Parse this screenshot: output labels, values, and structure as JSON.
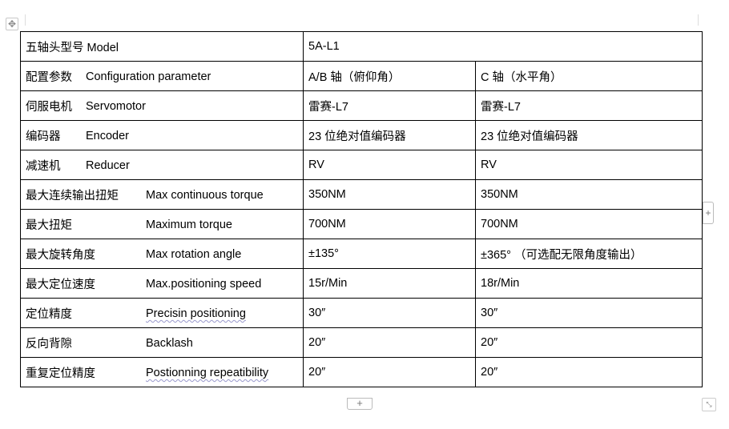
{
  "controls": {
    "move_icon": "move-arrows-icon",
    "add_row": "+",
    "add_column": "+",
    "resize_icon": "resize-icon"
  },
  "table": {
    "header": {
      "label_cn": "五轴头型号",
      "label_en": "Model",
      "value": "5A-L1"
    },
    "rows": [
      {
        "cn": "配置参数",
        "en": "Configuration parameter",
        "ab": "A/B 轴（俯仰角）",
        "c": "C 轴（水平角）"
      },
      {
        "cn": "伺服电机",
        "en": "Servomotor",
        "ab": "雷赛-L7",
        "c": "雷赛-L7"
      },
      {
        "cn": "编码器",
        "en": "Encoder",
        "ab": "23 位绝对值编码器",
        "c": "23 位绝对值编码器"
      },
      {
        "cn": "减速机",
        "en": "Reducer",
        "ab": "RV",
        "c": "RV"
      },
      {
        "cn": "最大连续输出扭矩",
        "en": "Max continuous torque",
        "ab": "350NM",
        "c": "350NM"
      },
      {
        "cn": "最大扭矩",
        "en": "Maximum torque",
        "ab": "700NM",
        "c": "700NM"
      },
      {
        "cn": "最大旋转角度",
        "en": "Max rotation angle",
        "ab": "±135°",
        "c": "±365° （可选配无限角度输出）"
      },
      {
        "cn": "最大定位速度",
        "en": "Max.positioning speed",
        "ab": "15r/Min",
        "c": "18r/Min"
      },
      {
        "cn": "定位精度",
        "en": "Precisin positioning",
        "ab": "30″",
        "c": "30″"
      },
      {
        "cn": "反向背隙",
        "en": "Backlash",
        "ab": "20″",
        "c": "20″"
      },
      {
        "cn": "重复定位精度",
        "en": "Postionning repeatibility",
        "ab": "20″",
        "c": "20″"
      }
    ]
  }
}
